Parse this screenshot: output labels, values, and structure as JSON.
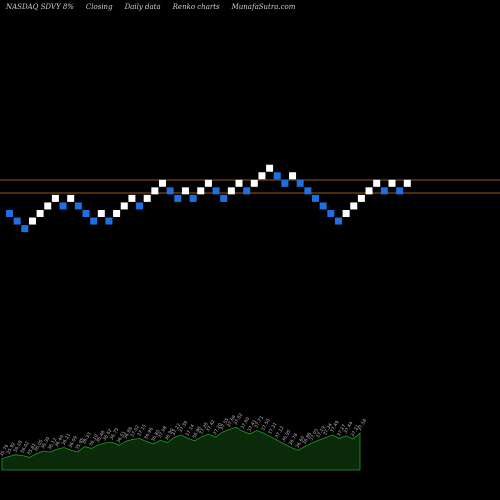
{
  "header": {
    "symbol": "NASDAQ SDVY",
    "change": "8%",
    "closing": "Closing",
    "freq": "Daily data",
    "chart_kind": "Renko charts",
    "site": "MunafaSutra.com"
  },
  "colors": {
    "up_brick": "#ffffff",
    "down_brick": "#1f6fe0",
    "reference_line": "#c8742a",
    "volume_fill": "#0a2a0a",
    "volume_stroke": "#1f9e1f",
    "label": "#bdbdbd"
  },
  "chart_data": {
    "type": "renko",
    "bricks": [
      {
        "dir": "down"
      },
      {
        "dir": "down"
      },
      {
        "dir": "down"
      },
      {
        "dir": "up"
      },
      {
        "dir": "up"
      },
      {
        "dir": "up"
      },
      {
        "dir": "up"
      },
      {
        "dir": "down"
      },
      {
        "dir": "up"
      },
      {
        "dir": "down"
      },
      {
        "dir": "down"
      },
      {
        "dir": "down"
      },
      {
        "dir": "up"
      },
      {
        "dir": "down"
      },
      {
        "dir": "up"
      },
      {
        "dir": "up"
      },
      {
        "dir": "up"
      },
      {
        "dir": "down"
      },
      {
        "dir": "up"
      },
      {
        "dir": "up"
      },
      {
        "dir": "up"
      },
      {
        "dir": "down"
      },
      {
        "dir": "down"
      },
      {
        "dir": "up"
      },
      {
        "dir": "down"
      },
      {
        "dir": "up"
      },
      {
        "dir": "up"
      },
      {
        "dir": "down"
      },
      {
        "dir": "down"
      },
      {
        "dir": "up"
      },
      {
        "dir": "up"
      },
      {
        "dir": "down"
      },
      {
        "dir": "up"
      },
      {
        "dir": "up"
      },
      {
        "dir": "up"
      },
      {
        "dir": "down"
      },
      {
        "dir": "down"
      },
      {
        "dir": "up"
      },
      {
        "dir": "down"
      },
      {
        "dir": "down"
      },
      {
        "dir": "down"
      },
      {
        "dir": "down"
      },
      {
        "dir": "down"
      },
      {
        "dir": "down"
      },
      {
        "dir": "up"
      },
      {
        "dir": "up"
      },
      {
        "dir": "up"
      },
      {
        "dir": "up"
      },
      {
        "dir": "up"
      },
      {
        "dir": "down"
      },
      {
        "dir": "up"
      },
      {
        "dir": "down"
      },
      {
        "dir": "up"
      }
    ],
    "reference_lines": [
      1,
      2
    ],
    "volume_labels": [
      "35.79",
      "35.92",
      "36.18",
      "36.02",
      "35.81",
      "36.05",
      "36.30",
      "36.12",
      "36.40",
      "36.21",
      "36.09",
      "35.95",
      "36.33",
      "36.10",
      "36.48",
      "36.62",
      "36.75",
      "36.51",
      "36.88",
      "37.02",
      "37.15",
      "36.96",
      "36.80",
      "37.08",
      "36.90",
      "37.22",
      "37.36",
      "37.14",
      "36.98",
      "37.28",
      "37.42",
      "37.20",
      "37.55",
      "37.69",
      "37.82",
      "37.60",
      "37.41",
      "37.73",
      "37.50",
      "37.31",
      "37.12",
      "36.95",
      "36.78",
      "36.60",
      "36.86",
      "37.03",
      "37.19",
      "37.34",
      "37.49",
      "37.27",
      "37.44",
      "37.21",
      "37.58"
    ],
    "volume_levels": [
      0.25,
      0.3,
      0.34,
      0.32,
      0.28,
      0.36,
      0.42,
      0.4,
      0.46,
      0.5,
      0.44,
      0.4,
      0.52,
      0.48,
      0.56,
      0.6,
      0.62,
      0.55,
      0.64,
      0.68,
      0.7,
      0.63,
      0.58,
      0.66,
      0.61,
      0.72,
      0.78,
      0.7,
      0.65,
      0.74,
      0.8,
      0.73,
      0.84,
      0.9,
      0.95,
      0.86,
      0.8,
      0.88,
      0.82,
      0.74,
      0.66,
      0.58,
      0.5,
      0.44,
      0.52,
      0.6,
      0.66,
      0.72,
      0.78,
      0.7,
      0.76,
      0.69,
      0.82
    ]
  }
}
